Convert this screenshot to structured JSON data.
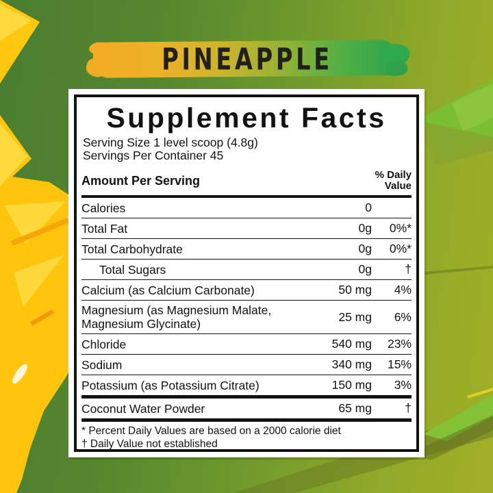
{
  "banner": {
    "flavor": "PINEAPPLE"
  },
  "panel": {
    "title": "Supplement Facts",
    "serving_size": "Serving Size 1 level scoop (4.8g)",
    "servings_per_container": "Servings Per Container 45",
    "header": {
      "amount_label": "Amount Per Serving",
      "dv_line1": "% Daily",
      "dv_line2": "Value"
    },
    "rows": [
      {
        "name": "Calories",
        "amount": "0",
        "dv": "",
        "indent": false,
        "thick_top": false,
        "thick_bottom": false
      },
      {
        "name": "Total Fat",
        "amount": "0g",
        "dv": "0%*",
        "indent": false,
        "thick_top": false,
        "thick_bottom": false
      },
      {
        "name": "Total Carbohydrate",
        "amount": "0g",
        "dv": "0%*",
        "indent": false,
        "thick_top": false,
        "thick_bottom": false
      },
      {
        "name": "Total Sugars",
        "amount": "0g",
        "dv": "†",
        "indent": true,
        "thick_top": false,
        "thick_bottom": false
      },
      {
        "name": "Calcium (as Calcium Carbonate)",
        "amount": "50 mg",
        "dv": "4%",
        "indent": false,
        "thick_top": false,
        "thick_bottom": false
      },
      {
        "name": "Magnesium (as Magnesium Malate, Magnesium Glycinate)",
        "amount": "25 mg",
        "dv": "6%",
        "indent": false,
        "thick_top": false,
        "thick_bottom": false
      },
      {
        "name": "Chloride",
        "amount": "540 mg",
        "dv": "23%",
        "indent": false,
        "thick_top": false,
        "thick_bottom": false
      },
      {
        "name": "Sodium",
        "amount": "340 mg",
        "dv": "15%",
        "indent": false,
        "thick_top": false,
        "thick_bottom": false
      },
      {
        "name": "Potassium (as Potassium Citrate)",
        "amount": "150 mg",
        "dv": "3%",
        "indent": false,
        "thick_top": false,
        "thick_bottom": false
      },
      {
        "name": "Coconut Water Powder",
        "amount": "65 mg",
        "dv": "†",
        "indent": false,
        "thick_top": true,
        "thick_bottom": true
      }
    ],
    "footnotes": [
      "* Percent Daily Values are based on a 2000 calorie diet",
      "† Daily Value not established"
    ]
  },
  "colors": {
    "bg_green_left": "#4a7d30",
    "bg_olive_right": "#a2b028",
    "leaf_light_green": "#7cbe33",
    "pineapple_yellow": "#ffc40c",
    "banner_orange": "#f2ac25",
    "banner_green": "#2fa24b",
    "panel_ink": "#121212"
  }
}
